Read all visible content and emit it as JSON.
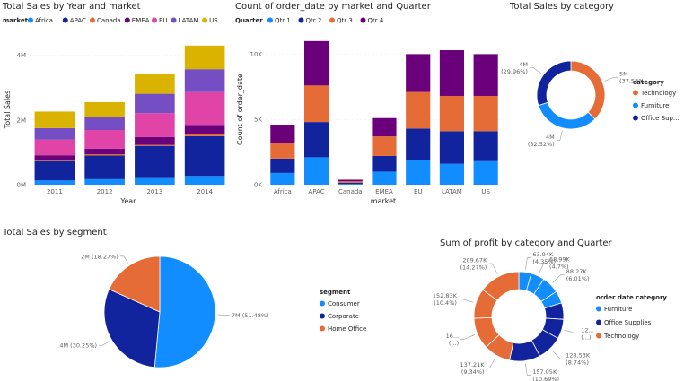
{
  "colors": {
    "markets": [
      "#118dff",
      "#12239e",
      "#e66c37",
      "#6b007b",
      "#e044a7",
      "#744ec2",
      "#d9b300"
    ],
    "quarters": [
      "#118dff",
      "#12239e",
      "#e66c37",
      "#6b007b"
    ],
    "categories": [
      "#e66c37",
      "#118dff",
      "#12239e"
    ],
    "segments": [
      "#118dff",
      "#12239e",
      "#e66c37"
    ],
    "text": "#252423",
    "axis": "#605e5c",
    "grid": "#e6e6e6"
  },
  "chart_data": [
    {
      "id": "sales-year-market",
      "type": "bar",
      "stacked": true,
      "title": "Total Sales by Year and market",
      "xlabel": "Year",
      "ylabel": "Total Sales",
      "legend_title": "market",
      "legend_position": "top",
      "categories": [
        "2011",
        "2012",
        "2013",
        "2014"
      ],
      "yticks": [
        "0M",
        "2M",
        "4M"
      ],
      "ytick_values": [
        0,
        2,
        4
      ],
      "ylim": [
        0,
        4.6
      ],
      "series": [
        {
          "name": "Africa",
          "values": [
            0.13,
            0.17,
            0.23,
            0.27
          ]
        },
        {
          "name": "APAC",
          "values": [
            0.6,
            0.73,
            0.97,
            1.23
          ]
        },
        {
          "name": "Canada",
          "values": [
            0.04,
            0.04,
            0.03,
            0.05
          ]
        },
        {
          "name": "EMEA",
          "values": [
            0.14,
            0.17,
            0.24,
            0.3
          ]
        },
        {
          "name": "EU",
          "values": [
            0.48,
            0.58,
            0.74,
            1.01
          ]
        },
        {
          "name": "LATAM",
          "values": [
            0.36,
            0.39,
            0.6,
            0.71
          ]
        },
        {
          "name": "US",
          "values": [
            0.51,
            0.47,
            0.6,
            0.73
          ]
        }
      ]
    },
    {
      "id": "orders-market-quarter",
      "type": "bar",
      "stacked": true,
      "title": "Count of order_date by market and Quarter",
      "xlabel": "market",
      "ylabel": "Count of order_date",
      "legend_title": "Quarter",
      "legend_position": "top",
      "categories": [
        "Africa",
        "APAC",
        "Canada",
        "EMEA",
        "EU",
        "LATAM",
        "US"
      ],
      "yticks": [
        "0K",
        "5K",
        "10K"
      ],
      "ytick_values": [
        0,
        5000,
        10000
      ],
      "ylim": [
        0,
        11400
      ],
      "series": [
        {
          "name": "Qtr 1",
          "values": [
            900,
            2100,
            60,
            1000,
            1900,
            1600,
            1800
          ]
        },
        {
          "name": "Qtr 2",
          "values": [
            1100,
            2700,
            90,
            1200,
            2400,
            2500,
            2300
          ]
        },
        {
          "name": "Qtr 3",
          "values": [
            1200,
            2800,
            110,
            1500,
            2800,
            2700,
            2700
          ]
        },
        {
          "name": "Qtr 4",
          "values": [
            1400,
            3400,
            120,
            1400,
            2900,
            3500,
            3200
          ]
        }
      ]
    },
    {
      "id": "sales-category",
      "type": "pie",
      "donut": true,
      "title": "Total Sales by category",
      "legend_title": "category",
      "legend_position": "right",
      "slices": [
        {
          "name": "Technology",
          "value": 37.53,
          "label": "5M (37.53%)"
        },
        {
          "name": "Furniture",
          "value": 32.52,
          "label": "4M (32.52%)"
        },
        {
          "name": "Office Supplies",
          "legend_label": "Office Sup...",
          "value": 29.96,
          "label": "4M (29.96%)"
        }
      ]
    },
    {
      "id": "sales-segment",
      "type": "pie",
      "donut": false,
      "title": "Total Sales by segment",
      "legend_title": "segment",
      "legend_position": "right",
      "slices": [
        {
          "name": "Consumer",
          "value": 51.48,
          "label": "7M (51.48%)"
        },
        {
          "name": "Corporate",
          "value": 30.25,
          "label": "4M (30.25%)"
        },
        {
          "name": "Home Office",
          "value": 18.27,
          "label": "2M (18.27%)"
        }
      ]
    },
    {
      "id": "profit-category-quarter",
      "type": "pie",
      "donut": true,
      "title": "Sum of profit by category and Quarter",
      "legend_title": "order date category",
      "legend_position": "right",
      "legend": [
        "Furniture",
        "Office Supplies",
        "Technology"
      ],
      "slices": [
        {
          "category": "Furniture",
          "value": 63.94,
          "label": "63.94K (4.35%)"
        },
        {
          "category": "Furniture",
          "value": 68.99,
          "label": "68.99K (4.7%)"
        },
        {
          "category": "Furniture",
          "value": 88.27,
          "label": "88.27K (6.01%)"
        },
        {
          "category": "Furniture",
          "value": 63.0,
          "label": ""
        },
        {
          "category": "Office Supplies",
          "value": 84.0,
          "label": ""
        },
        {
          "category": "Office Supplies",
          "value": 100.0,
          "label": "12... (...)"
        },
        {
          "category": "Office Supplies",
          "value": 128.53,
          "label": "128.53K (8.74%)"
        },
        {
          "category": "Office Supplies",
          "value": 157.05,
          "label": "157.05K (10.69%)"
        },
        {
          "category": "Technology",
          "value": 137.21,
          "label": "137.21K (9.34%)"
        },
        {
          "category": "Technology",
          "value": 160.0,
          "label": "16... (...)"
        },
        {
          "category": "Technology",
          "value": 152.83,
          "label": "152.83K (10.4%)"
        },
        {
          "category": "Technology",
          "value": 209.67,
          "label": "209.67K (14.27%)"
        }
      ]
    }
  ]
}
